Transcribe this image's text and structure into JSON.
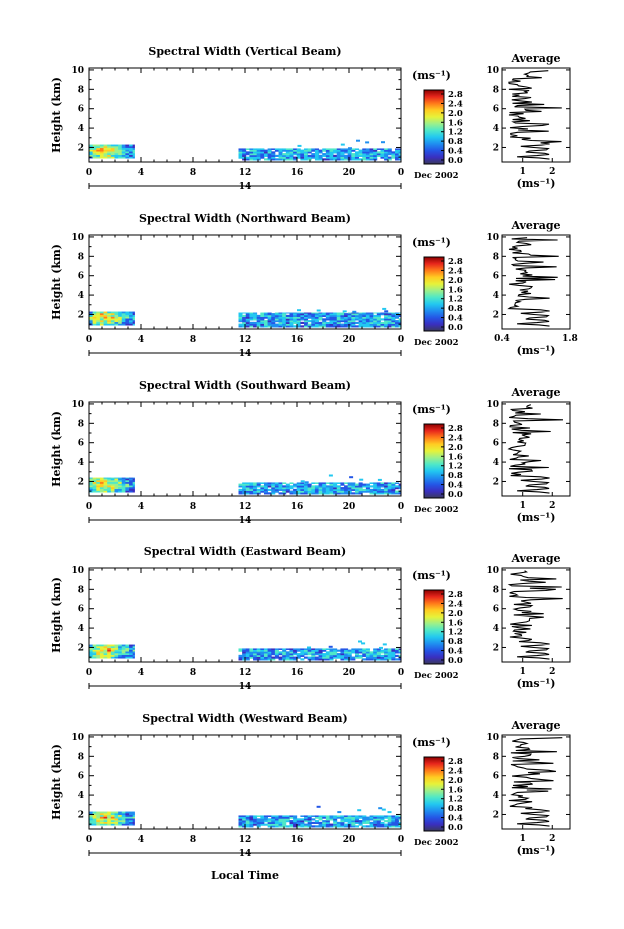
{
  "figure": {
    "xlabel": "Local Time",
    "date_label": "Dec 2002",
    "day_label": "14",
    "avg_title": "Average"
  },
  "colorbar": {
    "unit": "(ms⁻¹)",
    "labels": [
      "2.8",
      "2.4",
      "2.0",
      "1.6",
      "1.2",
      "0.8",
      "0.4",
      "0.0"
    ],
    "colors": [
      "#8b0000",
      "#e8261c",
      "#ff7a1a",
      "#ffcc22",
      "#e6f23a",
      "#9cf08a",
      "#4fe8c8",
      "#22c8f0",
      "#1f8ff0",
      "#2456e6",
      "#3a2fc0",
      "#3a3a5c"
    ]
  },
  "chart_data": [
    {
      "type": "heatmap",
      "title": "Spectral Width (Vertical Beam)",
      "ylabel": "Height (km)",
      "x_ticks": [
        "0",
        "4",
        "8",
        "12",
        "16",
        "20",
        "0"
      ],
      "y_ticks": [
        "10",
        "8",
        "6",
        "4",
        "2"
      ],
      "xlim": [
        0,
        24
      ],
      "ylim": [
        0.5,
        10.2
      ],
      "blocks": [
        {
          "x": [
            0,
            3.5
          ],
          "y": [
            0.9,
            2.3
          ]
        },
        {
          "x": [
            11.5,
            24
          ],
          "y": [
            0.7,
            1.9
          ]
        }
      ],
      "avg_x_ticks": [
        "1",
        "2"
      ],
      "avg_xlim": [
        0.3,
        2.6
      ],
      "avg_xlabel": "(ms⁻¹)"
    },
    {
      "type": "heatmap",
      "title": "Spectral Width (Northward Beam)",
      "ylabel": "Height (km)",
      "x_ticks": [
        "0",
        "4",
        "8",
        "12",
        "16",
        "20",
        "0"
      ],
      "y_ticks": [
        "10",
        "8",
        "6",
        "4",
        "2"
      ],
      "xlim": [
        0,
        24
      ],
      "ylim": [
        0.5,
        10.2
      ],
      "blocks": [
        {
          "x": [
            0,
            3.5
          ],
          "y": [
            0.9,
            2.3
          ]
        },
        {
          "x": [
            11.5,
            24
          ],
          "y": [
            0.7,
            2.2
          ]
        }
      ],
      "avg_x_ticks": [
        "0.4",
        "1.8"
      ],
      "avg_xlim": [
        0.4,
        1.8
      ],
      "avg_xlabel": "(ms⁻¹)"
    },
    {
      "type": "heatmap",
      "title": "Spectral Width (Southward Beam)",
      "ylabel": "Height (km)",
      "x_ticks": [
        "0",
        "4",
        "8",
        "12",
        "16",
        "20",
        "0"
      ],
      "y_ticks": [
        "10",
        "8",
        "6",
        "4",
        "2"
      ],
      "xlim": [
        0,
        24
      ],
      "ylim": [
        0.5,
        10.2
      ],
      "blocks": [
        {
          "x": [
            0,
            3.5
          ],
          "y": [
            0.9,
            2.4
          ]
        },
        {
          "x": [
            11.5,
            24
          ],
          "y": [
            0.7,
            1.9
          ]
        }
      ],
      "avg_x_ticks": [
        "1",
        "2"
      ],
      "avg_xlim": [
        0.3,
        2.6
      ],
      "avg_xlabel": "(ms⁻¹)"
    },
    {
      "type": "heatmap",
      "title": "Spectral Width (Eastward Beam)",
      "ylabel": "Height (km)",
      "x_ticks": [
        "0",
        "4",
        "8",
        "12",
        "16",
        "20",
        "0"
      ],
      "y_ticks": [
        "10",
        "8",
        "6",
        "4",
        "2"
      ],
      "xlim": [
        0,
        24
      ],
      "ylim": [
        0.5,
        10.2
      ],
      "blocks": [
        {
          "x": [
            0,
            3.5
          ],
          "y": [
            0.9,
            2.3
          ]
        },
        {
          "x": [
            11.5,
            24
          ],
          "y": [
            0.7,
            1.9
          ]
        }
      ],
      "avg_x_ticks": [
        "1",
        "2"
      ],
      "avg_xlim": [
        0.3,
        2.6
      ],
      "avg_xlabel": "(ms⁻¹)"
    },
    {
      "type": "heatmap",
      "title": "Spectral Width (Westward Beam)",
      "ylabel": "Height (km)",
      "x_ticks": [
        "0",
        "4",
        "8",
        "12",
        "16",
        "20",
        "0"
      ],
      "y_ticks": [
        "10",
        "8",
        "6",
        "4",
        "2"
      ],
      "xlim": [
        0,
        24
      ],
      "ylim": [
        0.5,
        10.2
      ],
      "blocks": [
        {
          "x": [
            0,
            3.5
          ],
          "y": [
            0.9,
            2.3
          ]
        },
        {
          "x": [
            11.5,
            24
          ],
          "y": [
            0.7,
            1.9
          ]
        }
      ],
      "avg_x_ticks": [
        "1",
        "2"
      ],
      "avg_xlim": [
        0.3,
        2.6
      ],
      "avg_xlabel": "(ms⁻¹)"
    }
  ]
}
